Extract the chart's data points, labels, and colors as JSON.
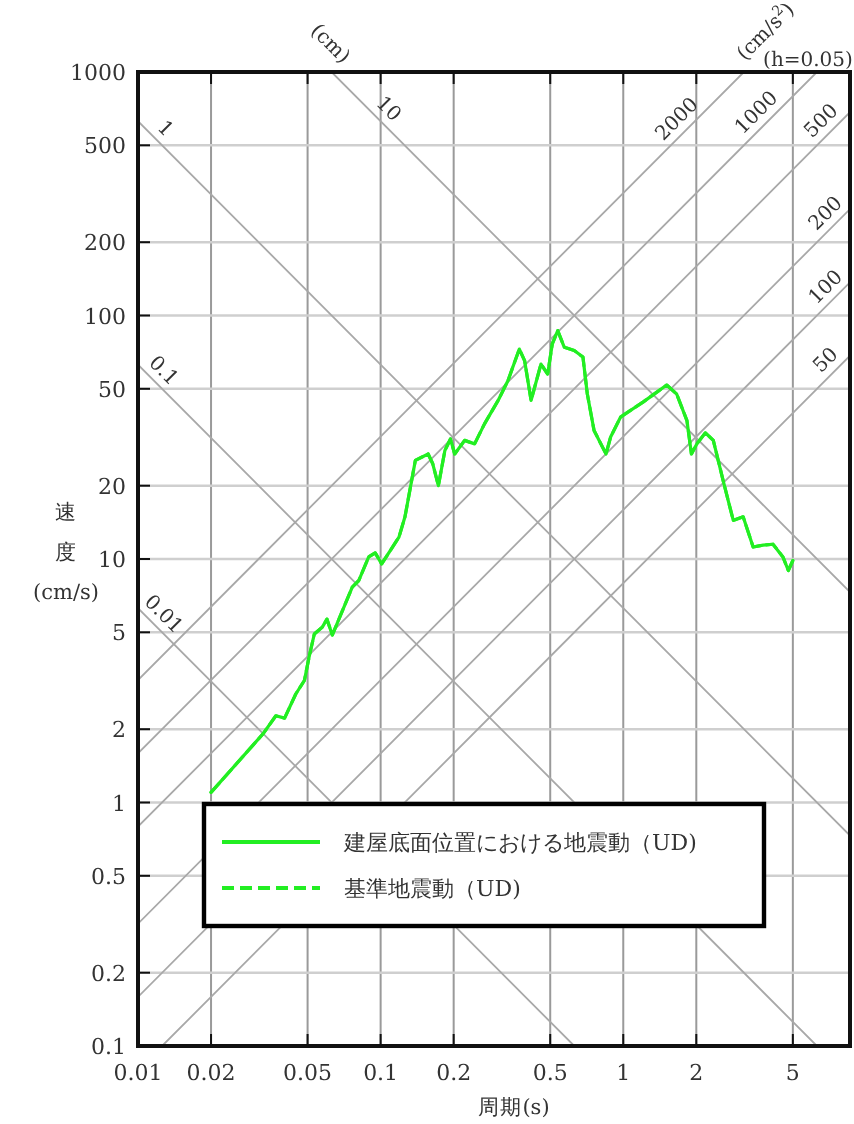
{
  "chart_data": {
    "type": "line",
    "xlabel": "周期(s)",
    "ylabel": "速度 (cm/s)",
    "log": "xy",
    "xlim": [
      0.01,
      8.6
    ],
    "ylim": [
      0.1,
      1000
    ],
    "xticks": [
      0.01,
      0.02,
      0.05,
      0.1,
      0.2,
      0.5,
      1,
      2,
      5
    ],
    "yticks": [
      0.1,
      0.2,
      0.5,
      1,
      2,
      5,
      10,
      20,
      50,
      100,
      200,
      500,
      1000
    ],
    "grid": true,
    "legend": "bottom",
    "series": [
      {
        "type": "line",
        "color": "#a8a8a8",
        "x": [
          0.0628,
          8.6
        ],
        "values": [
          1000,
          7.31
        ]
      },
      {
        "type": "line",
        "color": "#a8a8a8",
        "x": [
          0.01,
          8.6
        ],
        "values": [
          628.3,
          0.731
        ]
      },
      {
        "type": "line",
        "color": "#a8a8a8",
        "x": [
          0.01,
          6.283
        ],
        "values": [
          62.83,
          0.1
        ]
      },
      {
        "type": "line",
        "color": "#a8a8a8",
        "x": [
          0.01,
          0.6283
        ],
        "values": [
          6.283,
          0.1
        ]
      },
      {
        "type": "line",
        "color": "#a8a8a8",
        "x": [
          0.01,
          3.1416
        ],
        "values": [
          3.183,
          1000
        ]
      },
      {
        "type": "line",
        "color": "#a8a8a8",
        "x": [
          0.01,
          6.283
        ],
        "values": [
          1.592,
          1000
        ]
      },
      {
        "type": "line",
        "color": "#a8a8a8",
        "x": [
          0.01,
          8.6
        ],
        "values": [
          0.796,
          684.4
        ]
      },
      {
        "type": "line",
        "color": "#a8a8a8",
        "x": [
          0.01,
          8.6
        ],
        "values": [
          0.318,
          273.7
        ]
      },
      {
        "type": "line",
        "color": "#a8a8a8",
        "x": [
          0.01,
          8.6
        ],
        "values": [
          0.159,
          136.9
        ]
      },
      {
        "type": "line",
        "color": "#a8a8a8",
        "x": [
          0.01257,
          8.6
        ],
        "values": [
          0.1,
          68.4
        ]
      },
      {
        "type": "line",
        "name": "建屋底面位置における地震動（UD)",
        "color": "#22ee22",
        "line_style": "solid",
        "x": [
          0.02,
          0.0327,
          0.037,
          0.0402,
          0.0447,
          0.0485,
          0.0507,
          0.0533,
          0.0575,
          0.0601,
          0.0632,
          0.0764,
          0.0813,
          0.0893,
          0.095,
          0.101,
          0.119,
          0.126,
          0.139,
          0.157,
          0.164,
          0.173,
          0.184,
          0.194,
          0.202,
          0.222,
          0.244,
          0.268,
          0.305,
          0.335,
          0.373,
          0.392,
          0.417,
          0.458,
          0.488,
          0.51,
          0.537,
          0.571,
          0.628,
          0.682,
          0.711,
          0.758,
          0.849,
          0.887,
          0.975,
          1.21,
          1.51,
          1.66,
          1.83,
          1.91,
          2.01,
          2.18,
          2.35,
          2.58,
          2.84,
          3.12,
          3.43,
          3.77,
          4.14,
          4.55,
          4.79,
          5.0
        ],
        "values": [
          1.1,
          1.91,
          2.27,
          2.22,
          2.79,
          3.17,
          3.95,
          4.92,
          5.25,
          5.66,
          4.87,
          7.67,
          8.16,
          10.2,
          10.6,
          9.55,
          12.3,
          14.9,
          25.4,
          27.0,
          24.6,
          20.0,
          27.9,
          31.1,
          27.0,
          30.7,
          29.7,
          35.9,
          44.8,
          54.1,
          72.8,
          65.3,
          44.8,
          63.2,
          57.5,
          76.4,
          86.7,
          74.1,
          71.8,
          67.5,
          47.6,
          33.7,
          27.0,
          31.7,
          38.3,
          44.2,
          51.8,
          47.6,
          37.0,
          27.0,
          29.7,
          33.0,
          30.7,
          21.0,
          14.4,
          14.9,
          11.2,
          11.4,
          11.5,
          10.2,
          8.97,
          9.86
        ]
      },
      {
        "type": "line",
        "name": "基準地震動（UD)",
        "color": "#22ee22",
        "line_style": "dashed",
        "x": [
          0.02,
          0.0327,
          0.037,
          0.0402,
          0.0447,
          0.0485,
          0.0507,
          0.0533,
          0.0575,
          0.0601,
          0.0632,
          0.0764,
          0.0813,
          0.0893,
          0.095,
          0.101,
          0.119,
          0.126,
          0.139,
          0.157,
          0.164,
          0.173,
          0.184,
          0.194,
          0.202,
          0.222,
          0.244,
          0.268,
          0.305,
          0.335,
          0.373,
          0.392,
          0.417,
          0.458,
          0.488,
          0.51,
          0.537,
          0.571,
          0.628,
          0.682,
          0.711,
          0.758,
          0.849,
          0.887,
          0.975,
          1.21,
          1.51,
          1.66,
          1.83,
          1.91,
          2.01,
          2.18,
          2.35,
          2.58,
          2.84,
          3.12,
          3.43,
          3.77,
          4.14,
          4.55,
          4.79,
          5.0
        ],
        "values": [
          1.1,
          1.91,
          2.27,
          2.22,
          2.79,
          3.17,
          3.95,
          4.92,
          5.25,
          5.66,
          4.87,
          7.67,
          8.16,
          10.2,
          10.6,
          9.55,
          12.3,
          14.9,
          25.4,
          27.0,
          24.6,
          20.0,
          27.9,
          31.1,
          27.0,
          30.7,
          29.7,
          35.9,
          44.8,
          54.1,
          72.8,
          65.3,
          44.8,
          63.2,
          57.5,
          76.4,
          86.7,
          74.1,
          71.8,
          67.5,
          47.6,
          33.7,
          27.0,
          31.7,
          38.3,
          44.2,
          51.8,
          47.6,
          37.0,
          27.0,
          29.7,
          33.0,
          30.7,
          21.0,
          14.4,
          14.9,
          11.2,
          11.4,
          11.5,
          10.2,
          8.97,
          9.86
        ]
      }
    ],
    "annotations": [
      "(cm)",
      "(cm/s$^{2}$)",
      "(h=0.05)",
      {
        "text": "10",
        "x": 0.098,
        "y": 641
      },
      {
        "text": "1",
        "x": 0.0118,
        "y": 532
      },
      {
        "text": "0.1",
        "x": 0.0116,
        "y": 54
      },
      {
        "text": "0.01",
        "x": 0.0116,
        "y": 5.4
      },
      {
        "text": "2000",
        "x": 1.83,
        "y": 583
      },
      {
        "text": "1000",
        "x": 3.89,
        "y": 619
      },
      {
        "text": "500",
        "x": 7.2,
        "y": 573
      },
      {
        "text": "200",
        "x": 7.5,
        "y": 239
      },
      {
        "text": "100",
        "x": 7.5,
        "y": 119
      },
      {
        "text": "50",
        "x": 7.5,
        "y": 59.7
      }
    ]
  }
}
